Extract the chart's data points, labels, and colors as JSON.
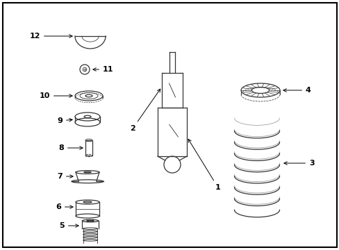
{
  "background_color": "#ffffff",
  "line_color": "#333333",
  "fig_width": 4.89,
  "fig_height": 3.6,
  "dpi": 100,
  "label_fontsize": 8,
  "lw": 0.9
}
